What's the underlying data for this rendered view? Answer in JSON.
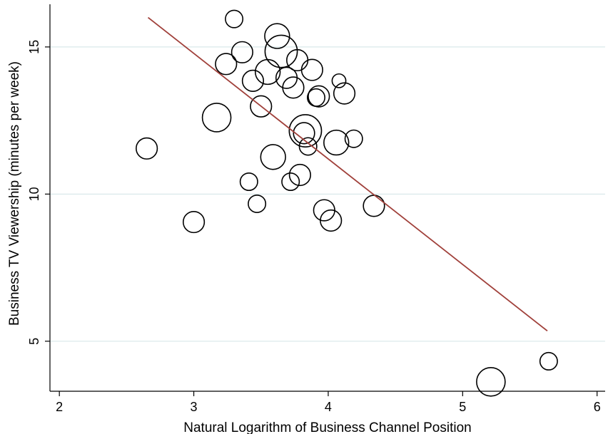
{
  "chart_data": {
    "type": "scatter",
    "title": "",
    "xlabel": "Natural Logarithm of Business Channel Position",
    "ylabel": "Business TV Viewership (minutes per week)",
    "xlim": [
      1.93,
      6.06
    ],
    "ylim": [
      3.3,
      16.45
    ],
    "x_ticks": [
      2,
      3,
      4,
      5,
      6
    ],
    "y_ticks": [
      5,
      10,
      15
    ],
    "x_tick_labels": [
      "2",
      "3",
      "4",
      "5",
      "6"
    ],
    "y_tick_labels": [
      "5",
      "10",
      "15"
    ],
    "grid": "horizontal at y ticks",
    "legend": "none",
    "marker": "hollow circle, size varies by point weight",
    "points": [
      {
        "x": 2.65,
        "y": 11.55,
        "s": 3
      },
      {
        "x": 3.0,
        "y": 9.05,
        "s": 3
      },
      {
        "x": 3.17,
        "y": 12.6,
        "s": 5
      },
      {
        "x": 3.24,
        "y": 14.42,
        "s": 3
      },
      {
        "x": 3.3,
        "y": 15.95,
        "s": 2
      },
      {
        "x": 3.36,
        "y": 14.82,
        "s": 3
      },
      {
        "x": 3.41,
        "y": 10.42,
        "s": 2
      },
      {
        "x": 3.44,
        "y": 13.85,
        "s": 3
      },
      {
        "x": 3.47,
        "y": 9.67,
        "s": 2
      },
      {
        "x": 3.5,
        "y": 12.98,
        "s": 3
      },
      {
        "x": 3.55,
        "y": 14.15,
        "s": 4
      },
      {
        "x": 3.59,
        "y": 11.26,
        "s": 4
      },
      {
        "x": 3.62,
        "y": 15.37,
        "s": 4
      },
      {
        "x": 3.65,
        "y": 14.85,
        "s": 6
      },
      {
        "x": 3.69,
        "y": 13.95,
        "s": 3
      },
      {
        "x": 3.72,
        "y": 10.42,
        "s": 2
      },
      {
        "x": 3.74,
        "y": 13.62,
        "s": 3
      },
      {
        "x": 3.77,
        "y": 14.55,
        "s": 3
      },
      {
        "x": 3.79,
        "y": 10.65,
        "s": 3
      },
      {
        "x": 3.82,
        "y": 12.07,
        "s": 3
      },
      {
        "x": 3.83,
        "y": 12.15,
        "s": 6
      },
      {
        "x": 3.85,
        "y": 11.62,
        "s": 2
      },
      {
        "x": 3.88,
        "y": 14.22,
        "s": 3
      },
      {
        "x": 3.91,
        "y": 13.28,
        "s": 2
      },
      {
        "x": 3.93,
        "y": 13.32,
        "s": 3
      },
      {
        "x": 3.97,
        "y": 9.45,
        "s": 3
      },
      {
        "x": 4.02,
        "y": 9.1,
        "s": 3
      },
      {
        "x": 4.06,
        "y": 11.75,
        "s": 4
      },
      {
        "x": 4.08,
        "y": 13.85,
        "s": 1
      },
      {
        "x": 4.12,
        "y": 13.42,
        "s": 3
      },
      {
        "x": 4.19,
        "y": 11.88,
        "s": 2
      },
      {
        "x": 4.34,
        "y": 9.6,
        "s": 3
      },
      {
        "x": 5.21,
        "y": 3.62,
        "s": 5
      },
      {
        "x": 5.64,
        "y": 4.32,
        "s": 2
      }
    ],
    "fit_line": {
      "x": [
        2.66,
        5.63
      ],
      "y": [
        16.0,
        5.35
      ]
    },
    "colors": {
      "marker": "#000000",
      "fit_line": "#a0403a",
      "grid": "#d9e8ea",
      "axis": "#000000"
    }
  }
}
